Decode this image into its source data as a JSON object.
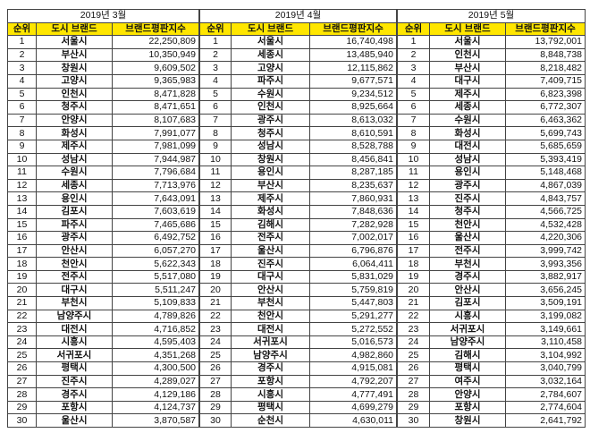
{
  "headers": {
    "rank": "순위",
    "city": "도시 브랜드",
    "value": "브랜드평판지수"
  },
  "header_color": "#FFE600",
  "tables": [
    {
      "title": "2019년 3월",
      "rows": [
        [
          "1",
          "서울시",
          "22,250,809"
        ],
        [
          "2",
          "부산시",
          "10,350,949"
        ],
        [
          "3",
          "창원시",
          "9,609,502"
        ],
        [
          "4",
          "고양시",
          "9,365,983"
        ],
        [
          "5",
          "인천시",
          "8,471,828"
        ],
        [
          "6",
          "청주시",
          "8,471,651"
        ],
        [
          "7",
          "안양시",
          "8,107,683"
        ],
        [
          "8",
          "화성시",
          "7,991,077"
        ],
        [
          "9",
          "제주시",
          "7,981,099"
        ],
        [
          "10",
          "성남시",
          "7,944,987"
        ],
        [
          "11",
          "수원시",
          "7,796,684"
        ],
        [
          "12",
          "세종시",
          "7,713,976"
        ],
        [
          "13",
          "용인시",
          "7,643,091"
        ],
        [
          "14",
          "김포시",
          "7,603,619"
        ],
        [
          "15",
          "파주시",
          "7,465,686"
        ],
        [
          "16",
          "광주시",
          "6,492,752"
        ],
        [
          "17",
          "안산시",
          "6,057,270"
        ],
        [
          "18",
          "천안시",
          "5,622,343"
        ],
        [
          "19",
          "전주시",
          "5,517,080"
        ],
        [
          "20",
          "대구시",
          "5,511,247"
        ],
        [
          "21",
          "부천시",
          "5,109,833"
        ],
        [
          "22",
          "남양주시",
          "4,789,826"
        ],
        [
          "23",
          "대전시",
          "4,716,852"
        ],
        [
          "24",
          "시흥시",
          "4,595,403"
        ],
        [
          "25",
          "서귀포시",
          "4,351,268"
        ],
        [
          "26",
          "평택시",
          "4,300,500"
        ],
        [
          "27",
          "진주시",
          "4,289,027"
        ],
        [
          "28",
          "경주시",
          "4,129,186"
        ],
        [
          "29",
          "포항시",
          "4,124,737"
        ],
        [
          "30",
          "울산시",
          "3,870,587"
        ]
      ]
    },
    {
      "title": "2019년 4월",
      "rows": [
        [
          "1",
          "서울시",
          "16,740,498"
        ],
        [
          "2",
          "세종시",
          "13,485,940"
        ],
        [
          "3",
          "고양시",
          "12,115,862"
        ],
        [
          "4",
          "파주시",
          "9,677,571"
        ],
        [
          "5",
          "수원시",
          "9,234,512"
        ],
        [
          "6",
          "인천시",
          "8,925,664"
        ],
        [
          "7",
          "광주시",
          "8,613,032"
        ],
        [
          "8",
          "청주시",
          "8,610,591"
        ],
        [
          "9",
          "성남시",
          "8,528,788"
        ],
        [
          "10",
          "창원시",
          "8,456,841"
        ],
        [
          "11",
          "용인시",
          "8,287,185"
        ],
        [
          "12",
          "부산시",
          "8,235,637"
        ],
        [
          "13",
          "제주시",
          "7,860,931"
        ],
        [
          "14",
          "화성시",
          "7,848,636"
        ],
        [
          "15",
          "김해시",
          "7,282,928"
        ],
        [
          "16",
          "전주시",
          "7,002,017"
        ],
        [
          "17",
          "울산시",
          "6,796,876"
        ],
        [
          "18",
          "진주시",
          "6,064,411"
        ],
        [
          "19",
          "대구시",
          "5,831,029"
        ],
        [
          "20",
          "안산시",
          "5,759,819"
        ],
        [
          "21",
          "부천시",
          "5,447,803"
        ],
        [
          "22",
          "천안시",
          "5,291,277"
        ],
        [
          "23",
          "대전시",
          "5,272,552"
        ],
        [
          "24",
          "서귀포시",
          "5,016,573"
        ],
        [
          "25",
          "남양주시",
          "4,982,860"
        ],
        [
          "26",
          "경주시",
          "4,915,081"
        ],
        [
          "27",
          "포항시",
          "4,792,207"
        ],
        [
          "28",
          "시흥시",
          "4,777,491"
        ],
        [
          "29",
          "평택시",
          "4,699,279"
        ],
        [
          "30",
          "순천시",
          "4,630,011"
        ]
      ]
    },
    {
      "title": "2019년 5월",
      "rows": [
        [
          "1",
          "서울시",
          "13,792,001"
        ],
        [
          "2",
          "인천시",
          "8,848,738"
        ],
        [
          "3",
          "부산시",
          "8,218,482"
        ],
        [
          "4",
          "대구시",
          "7,409,715"
        ],
        [
          "5",
          "제주시",
          "6,823,398"
        ],
        [
          "6",
          "세종시",
          "6,772,307"
        ],
        [
          "7",
          "수원시",
          "6,463,362"
        ],
        [
          "8",
          "화성시",
          "5,699,743"
        ],
        [
          "9",
          "대전시",
          "5,685,659"
        ],
        [
          "10",
          "성남시",
          "5,393,419"
        ],
        [
          "11",
          "용인시",
          "5,148,468"
        ],
        [
          "12",
          "광주시",
          "4,867,039"
        ],
        [
          "13",
          "진주시",
          "4,843,757"
        ],
        [
          "14",
          "청주시",
          "4,566,725"
        ],
        [
          "15",
          "천안시",
          "4,532,428"
        ],
        [
          "16",
          "울산시",
          "4,220,306"
        ],
        [
          "17",
          "전주시",
          "3,999,742"
        ],
        [
          "18",
          "부천시",
          "3,993,356"
        ],
        [
          "19",
          "경주시",
          "3,882,917"
        ],
        [
          "20",
          "안산시",
          "3,656,245"
        ],
        [
          "21",
          "김포시",
          "3,509,191"
        ],
        [
          "22",
          "시흥시",
          "3,199,082"
        ],
        [
          "23",
          "서귀포시",
          "3,149,661"
        ],
        [
          "24",
          "남양주시",
          "3,110,458"
        ],
        [
          "25",
          "김해시",
          "3,104,992"
        ],
        [
          "26",
          "평택시",
          "3,040,799"
        ],
        [
          "27",
          "여주시",
          "3,032,164"
        ],
        [
          "28",
          "안양시",
          "2,784,607"
        ],
        [
          "29",
          "포항시",
          "2,774,604"
        ],
        [
          "30",
          "창원시",
          "2,641,792"
        ]
      ]
    }
  ]
}
